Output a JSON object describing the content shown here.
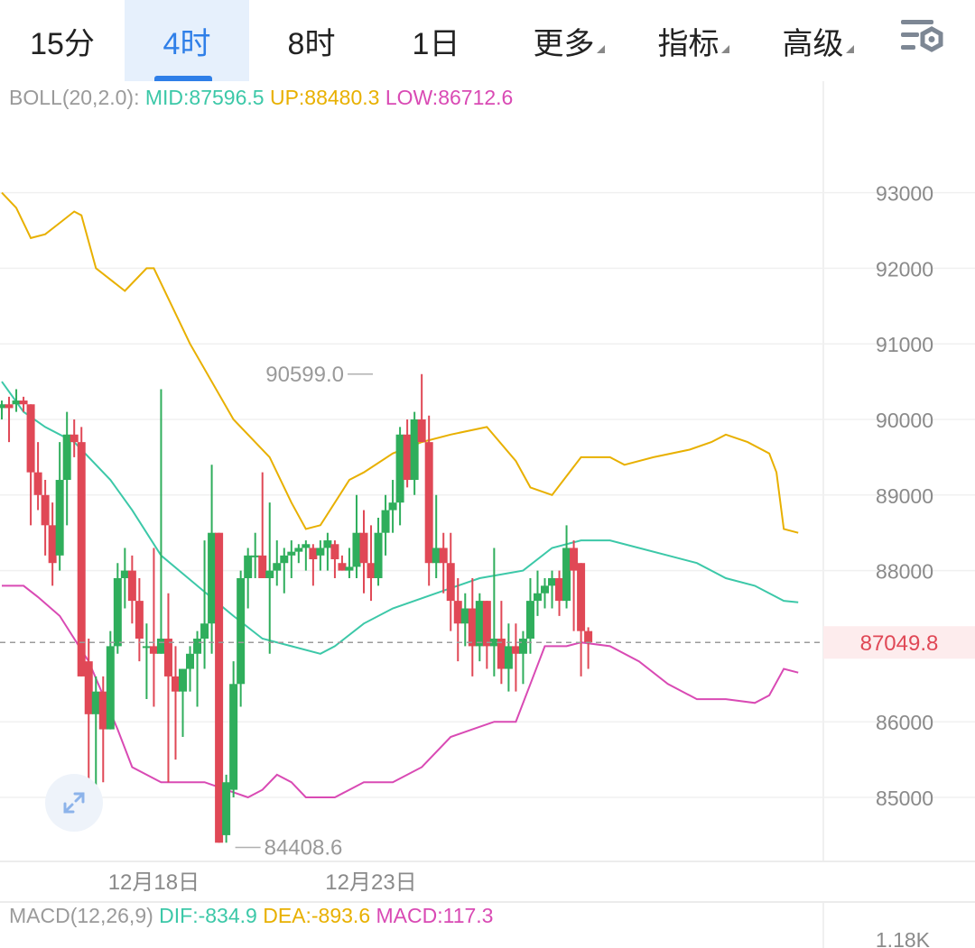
{
  "tabs": [
    {
      "label": "15分",
      "active": false,
      "has_dropdown": false
    },
    {
      "label": "4时",
      "active": true,
      "has_dropdown": false
    },
    {
      "label": "8时",
      "active": false,
      "has_dropdown": false
    },
    {
      "label": "1日",
      "active": false,
      "has_dropdown": false
    },
    {
      "label": "更多",
      "active": false,
      "has_dropdown": true
    },
    {
      "label": "指标",
      "active": false,
      "has_dropdown": true
    },
    {
      "label": "高级",
      "active": false,
      "has_dropdown": true
    }
  ],
  "settings_icon": "chart-settings-icon",
  "boll": {
    "name": "BOLL(20,2.0):",
    "mid": "MID:87596.5",
    "up": "UP:88480.3",
    "low": "LOW:86712.6"
  },
  "macd": {
    "name": "MACD(12,26,9)",
    "dif": "DIF:-834.9",
    "dea": "DEA:-893.6",
    "macd": "MACD:117.3",
    "axis_label": "1.18K"
  },
  "colors": {
    "up": "#2fae5c",
    "down": "#e04856",
    "mid": "#3cc8a8",
    "upper": "#e8b000",
    "lower": "#d94ab4",
    "accent": "#2f7fe8"
  },
  "chart_data": {
    "type": "candlestick",
    "timeframe": "4时",
    "y_ticks": [
      93000,
      92000,
      91000,
      90000,
      89000,
      88000,
      86000,
      85000
    ],
    "ylim": [
      84300,
      93400
    ],
    "x_labels": [
      {
        "index": 20,
        "label": "12月18日"
      },
      {
        "index": 50,
        "label": "12月23日"
      }
    ],
    "current_price": "87049.8",
    "high_marker": {
      "index": 52,
      "label": "90599.0",
      "value": 90599.0
    },
    "low_marker": {
      "index": 30,
      "label": "84408.6",
      "value": 84408.6
    },
    "candles": [
      [
        90150,
        90250,
        90000,
        90200
      ],
      [
        90200,
        90300,
        89700,
        90150
      ],
      [
        90200,
        90400,
        90100,
        90250
      ],
      [
        90250,
        90300,
        90100,
        90200
      ],
      [
        90200,
        90200,
        88600,
        89300
      ],
      [
        89300,
        89700,
        88800,
        89000
      ],
      [
        89000,
        89200,
        88200,
        88600
      ],
      [
        88600,
        88900,
        87800,
        88100
      ],
      [
        88200,
        89700,
        88000,
        89200
      ],
      [
        89200,
        90100,
        88600,
        89800
      ],
      [
        89800,
        90000,
        89500,
        89700
      ],
      [
        89700,
        89900,
        86600,
        86600
      ],
      [
        86800,
        87100,
        85000,
        86100
      ],
      [
        86100,
        86600,
        85100,
        86400
      ],
      [
        86400,
        86600,
        85200,
        85900
      ],
      [
        85900,
        87200,
        85900,
        87000
      ],
      [
        87000,
        88100,
        86900,
        87900
      ],
      [
        87900,
        88300,
        87500,
        88000
      ],
      [
        88000,
        88200,
        87300,
        87600
      ],
      [
        87600,
        87900,
        86800,
        87100
      ],
      [
        87000,
        87300,
        86300,
        87000
      ],
      [
        87000,
        88300,
        86200,
        86900
      ],
      [
        86900,
        90400,
        86900,
        87100
      ],
      [
        87100,
        87700,
        85200,
        86600
      ],
      [
        86600,
        87000,
        85500,
        86400
      ],
      [
        86400,
        86700,
        85800,
        86700
      ],
      [
        86700,
        87000,
        86400,
        86900
      ],
      [
        86900,
        87200,
        86200,
        87100
      ],
      [
        87100,
        88400,
        86700,
        87300
      ],
      [
        87300,
        89400,
        86900,
        88500
      ],
      [
        88500,
        88500,
        84400,
        84400
      ],
      [
        84500,
        85300,
        84400,
        85200
      ],
      [
        85100,
        86800,
        85000,
        86500
      ],
      [
        86500,
        88000,
        86200,
        87900
      ],
      [
        87900,
        88300,
        87500,
        88200
      ],
      [
        88200,
        88500,
        87900,
        88200
      ],
      [
        88200,
        89300,
        87900,
        87900
      ],
      [
        87900,
        88900,
        86900,
        88000
      ],
      [
        88000,
        88400,
        87800,
        88100
      ],
      [
        88100,
        88300,
        87700,
        88200
      ],
      [
        88200,
        88400,
        87900,
        88250
      ],
      [
        88250,
        88350,
        88100,
        88300
      ],
      [
        88300,
        88400,
        88000,
        88350
      ],
      [
        88300,
        88350,
        87800,
        88150
      ],
      [
        88200,
        88400,
        88000,
        88300
      ],
      [
        88300,
        88500,
        88000,
        88400
      ],
      [
        88350,
        88400,
        87900,
        88150
      ],
      [
        88100,
        88200,
        88000,
        88000
      ],
      [
        88000,
        88300,
        87900,
        88050
      ],
      [
        88050,
        89000,
        87900,
        88500
      ],
      [
        88500,
        88800,
        87700,
        88100
      ],
      [
        88100,
        88600,
        87600,
        87900
      ],
      [
        87900,
        88700,
        87800,
        88500
      ],
      [
        88500,
        89000,
        88200,
        88800
      ],
      [
        88800,
        89200,
        88500,
        88900
      ],
      [
        88900,
        89900,
        88600,
        89800
      ],
      [
        89800,
        90000,
        89100,
        89200
      ],
      [
        89200,
        90100,
        89000,
        90000
      ],
      [
        90000,
        90600,
        89700,
        89700
      ],
      [
        89700,
        90050,
        87800,
        88100
      ],
      [
        88100,
        89000,
        87900,
        88300
      ],
      [
        88300,
        88500,
        87700,
        88100
      ],
      [
        88100,
        88500,
        87200,
        87600
      ],
      [
        87600,
        87900,
        86800,
        87300
      ],
      [
        87300,
        87700,
        87000,
        87500
      ],
      [
        87500,
        87900,
        86600,
        87000
      ],
      [
        87000,
        87700,
        86800,
        87600
      ],
      [
        87600,
        87600,
        86700,
        87000
      ],
      [
        87000,
        88300,
        86600,
        87100
      ],
      [
        87100,
        87600,
        86500,
        86700
      ],
      [
        86700,
        87300,
        86400,
        87000
      ],
      [
        87000,
        87300,
        86400,
        86900
      ],
      [
        86900,
        87200,
        86500,
        87100
      ],
      [
        87100,
        87900,
        86900,
        87600
      ],
      [
        87600,
        88000,
        87400,
        87700
      ],
      [
        87700,
        87900,
        87500,
        87800
      ],
      [
        87800,
        88000,
        87500,
        87900
      ],
      [
        87900,
        88000,
        87400,
        87600
      ],
      [
        87600,
        88600,
        87500,
        88300
      ],
      [
        88300,
        88400,
        87200,
        88000
      ],
      [
        88100,
        88100,
        86600,
        87200
      ],
      [
        87200,
        87250,
        86700,
        87050
      ]
    ],
    "bollinger": {
      "upper": [
        [
          0,
          93000
        ],
        [
          2,
          92800
        ],
        [
          4,
          92400
        ],
        [
          6,
          92450
        ],
        [
          8,
          92600
        ],
        [
          10,
          92750
        ],
        [
          11,
          92700
        ],
        [
          13,
          92000
        ],
        [
          17,
          91700
        ],
        [
          20,
          92000
        ],
        [
          21,
          92000
        ],
        [
          26,
          91000
        ],
        [
          32,
          90000
        ],
        [
          37,
          89500
        ],
        [
          40,
          88900
        ],
        [
          42,
          88550
        ],
        [
          44,
          88600
        ],
        [
          48,
          89200
        ],
        [
          50,
          89300
        ],
        [
          54,
          89550
        ],
        [
          58,
          89700
        ],
        [
          62,
          89800
        ],
        [
          67,
          89900
        ],
        [
          71,
          89450
        ],
        [
          73,
          89100
        ],
        [
          76,
          89000
        ],
        [
          80,
          89500
        ],
        [
          84,
          89500
        ],
        [
          86,
          89400
        ],
        [
          90,
          89500
        ],
        [
          95,
          89600
        ],
        [
          98,
          89700
        ],
        [
          100,
          89800
        ],
        [
          103,
          89700
        ],
        [
          106,
          89550
        ],
        [
          107,
          89300
        ],
        [
          108,
          88550
        ],
        [
          110,
          88500
        ]
      ],
      "mid": [
        [
          0,
          90500
        ],
        [
          3,
          90100
        ],
        [
          6,
          89900
        ],
        [
          10,
          89700
        ],
        [
          15,
          89200
        ],
        [
          18,
          88800
        ],
        [
          22,
          88200
        ],
        [
          27,
          87800
        ],
        [
          32,
          87400
        ],
        [
          36,
          87100
        ],
        [
          40,
          87000
        ],
        [
          44,
          86900
        ],
        [
          46,
          87000
        ],
        [
          50,
          87300
        ],
        [
          54,
          87500
        ],
        [
          60,
          87700
        ],
        [
          66,
          87900
        ],
        [
          72,
          88000
        ],
        [
          76,
          88300
        ],
        [
          80,
          88400
        ],
        [
          84,
          88400
        ],
        [
          88,
          88300
        ],
        [
          92,
          88200
        ],
        [
          96,
          88100
        ],
        [
          100,
          87900
        ],
        [
          104,
          87800
        ],
        [
          108,
          87600
        ],
        [
          110,
          87580
        ]
      ],
      "lower": [
        [
          0,
          87800
        ],
        [
          3,
          87800
        ],
        [
          5,
          87650
        ],
        [
          8,
          87400
        ],
        [
          12,
          86800
        ],
        [
          16,
          85900
        ],
        [
          18,
          85400
        ],
        [
          22,
          85200
        ],
        [
          28,
          85200
        ],
        [
          34,
          85000
        ],
        [
          36,
          85100
        ],
        [
          38,
          85300
        ],
        [
          40,
          85200
        ],
        [
          42,
          85000
        ],
        [
          46,
          85000
        ],
        [
          50,
          85200
        ],
        [
          54,
          85200
        ],
        [
          58,
          85400
        ],
        [
          62,
          85800
        ],
        [
          65,
          85900
        ],
        [
          68,
          86000
        ],
        [
          71,
          86000
        ],
        [
          73,
          86500
        ],
        [
          75,
          87000
        ],
        [
          76,
          87000
        ],
        [
          78,
          87000
        ],
        [
          80,
          87050
        ],
        [
          84,
          87000
        ],
        [
          88,
          86800
        ],
        [
          92,
          86500
        ],
        [
          96,
          86300
        ],
        [
          100,
          86300
        ],
        [
          104,
          86250
        ],
        [
          106,
          86350
        ],
        [
          108,
          86700
        ],
        [
          110,
          86650
        ]
      ]
    }
  }
}
